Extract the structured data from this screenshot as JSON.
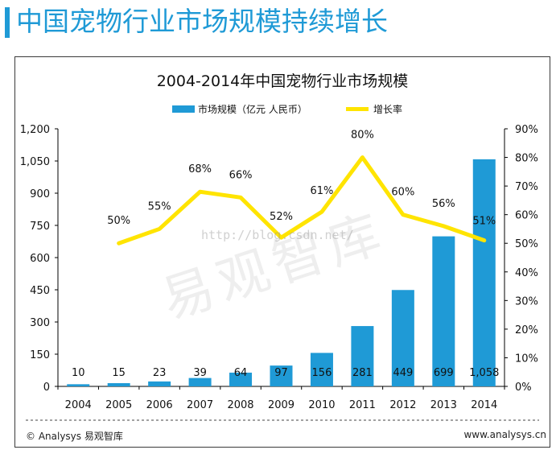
{
  "page_title": "中国宠物行业市场规模持续增长",
  "footer": {
    "left": "© Analysys 易观智库",
    "right": "www.analysys.cn"
  },
  "watermark": "易观智库",
  "url_watermark": "http://blog.csdn.net/",
  "colors": {
    "accent": "#1f9ad6",
    "bar": "#1f9ad6",
    "line": "#ffe400"
  },
  "chart_data": {
    "type": "bar",
    "title": "2004-2014年中国宠物行业市场规模",
    "categories": [
      "2004",
      "2005",
      "2006",
      "2007",
      "2008",
      "2009",
      "2010",
      "2011",
      "2012",
      "2013",
      "2014"
    ],
    "series": [
      {
        "name": "市场规模（亿元 人民币）",
        "type": "bar",
        "axis": "left",
        "values": [
          10,
          15,
          23,
          39,
          64,
          97,
          156,
          281,
          449,
          699,
          1058
        ],
        "labels": [
          "10",
          "15",
          "23",
          "39",
          "64",
          "97",
          "156",
          "281",
          "449",
          "699",
          "1,058"
        ]
      },
      {
        "name": "增长率",
        "type": "line",
        "axis": "right",
        "values": [
          null,
          50,
          55,
          68,
          66,
          52,
          61,
          80,
          60,
          56,
          51
        ],
        "labels": [
          "",
          "50%",
          "55%",
          "68%",
          "66%",
          "52%",
          "61%",
          "80%",
          "60%",
          "56%",
          "51%"
        ]
      }
    ],
    "y_left": {
      "ylim": [
        0,
        1200
      ],
      "ticks": [
        0,
        150,
        300,
        450,
        600,
        750,
        900,
        1050,
        1200
      ],
      "tick_labels": [
        "0",
        "150",
        "300",
        "450",
        "600",
        "750",
        "900",
        "1,050",
        "1,200"
      ]
    },
    "y_right": {
      "ylim": [
        0,
        90
      ],
      "ticks": [
        0,
        10,
        20,
        30,
        40,
        50,
        60,
        70,
        80,
        90
      ],
      "tick_labels": [
        "0%",
        "10%",
        "20%",
        "30%",
        "40%",
        "50%",
        "60%",
        "70%",
        "80%",
        "90%"
      ]
    },
    "legend": "top-center",
    "grid": false
  }
}
